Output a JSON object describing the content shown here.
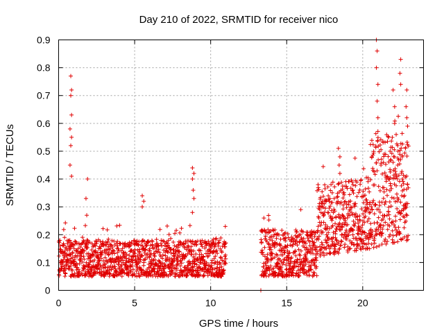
{
  "chart_data": {
    "type": "scatter",
    "title": "Day 210 of 2022, SRMTID for receiver nico",
    "xlabel": "GPS time / hours",
    "ylabel": "SRMTID / TECUs",
    "xlim": [
      0,
      24
    ],
    "ylim": [
      0,
      0.9
    ],
    "xticks": [
      0,
      5,
      10,
      15,
      20
    ],
    "yticks": [
      0,
      0.1,
      0.2,
      0.3,
      0.4,
      0.5,
      0.6,
      0.7,
      0.8,
      0.9
    ],
    "grid": true,
    "marker": "+",
    "color": "#e00000",
    "segments": [
      {
        "x_start": 0.0,
        "x_end": 11.0,
        "base_min": 0.05,
        "base_max": 0.18
      },
      {
        "x_start": 13.3,
        "x_end": 17.0,
        "base_min": 0.05,
        "base_max": 0.22
      },
      {
        "x_start": 17.0,
        "x_end": 20.5,
        "base_min": 0.12,
        "base_max": 0.38
      },
      {
        "x_start": 20.5,
        "x_end": 23.0,
        "base_min": 0.15,
        "base_max": 0.55
      }
    ],
    "notable_points": [
      {
        "x": 0.8,
        "y": 0.77
      },
      {
        "x": 0.85,
        "y": 0.72
      },
      {
        "x": 0.8,
        "y": 0.7
      },
      {
        "x": 0.85,
        "y": 0.63
      },
      {
        "x": 0.75,
        "y": 0.58
      },
      {
        "x": 0.85,
        "y": 0.55
      },
      {
        "x": 0.8,
        "y": 0.52
      },
      {
        "x": 0.75,
        "y": 0.45
      },
      {
        "x": 0.85,
        "y": 0.41
      },
      {
        "x": 1.9,
        "y": 0.4
      },
      {
        "x": 1.8,
        "y": 0.33
      },
      {
        "x": 1.85,
        "y": 0.27
      },
      {
        "x": 5.5,
        "y": 0.34
      },
      {
        "x": 5.6,
        "y": 0.32
      },
      {
        "x": 5.5,
        "y": 0.3
      },
      {
        "x": 8.8,
        "y": 0.44
      },
      {
        "x": 8.9,
        "y": 0.42
      },
      {
        "x": 8.8,
        "y": 0.4
      },
      {
        "x": 8.85,
        "y": 0.36
      },
      {
        "x": 8.9,
        "y": 0.33
      },
      {
        "x": 8.8,
        "y": 0.28
      },
      {
        "x": 13.3,
        "y": 0.0
      },
      {
        "x": 13.5,
        "y": 0.26
      },
      {
        "x": 18.4,
        "y": 0.51
      },
      {
        "x": 18.5,
        "y": 0.48
      },
      {
        "x": 18.45,
        "y": 0.45
      },
      {
        "x": 18.5,
        "y": 0.42
      },
      {
        "x": 20.9,
        "y": 0.9
      },
      {
        "x": 20.95,
        "y": 0.86
      },
      {
        "x": 20.9,
        "y": 0.8
      },
      {
        "x": 21.0,
        "y": 0.74
      },
      {
        "x": 20.95,
        "y": 0.68
      },
      {
        "x": 21.0,
        "y": 0.62
      },
      {
        "x": 22.5,
        "y": 0.83
      },
      {
        "x": 22.45,
        "y": 0.78
      },
      {
        "x": 22.5,
        "y": 0.74
      },
      {
        "x": 22.0,
        "y": 0.72
      },
      {
        "x": 22.1,
        "y": 0.66
      },
      {
        "x": 22.9,
        "y": 0.72
      },
      {
        "x": 22.85,
        "y": 0.66
      },
      {
        "x": 22.9,
        "y": 0.62
      },
      {
        "x": 22.95,
        "y": 0.59
      },
      {
        "x": 22.1,
        "y": 0.6
      },
      {
        "x": 22.2,
        "y": 0.56
      },
      {
        "x": 22.3,
        "y": 0.52
      },
      {
        "x": 21.7,
        "y": 0.55
      },
      {
        "x": 21.8,
        "y": 0.5
      },
      {
        "x": 22.6,
        "y": 0.48
      },
      {
        "x": 22.3,
        "y": 0.45
      },
      {
        "x": 20.6,
        "y": 0.48
      },
      {
        "x": 21.2,
        "y": 0.45
      }
    ]
  }
}
